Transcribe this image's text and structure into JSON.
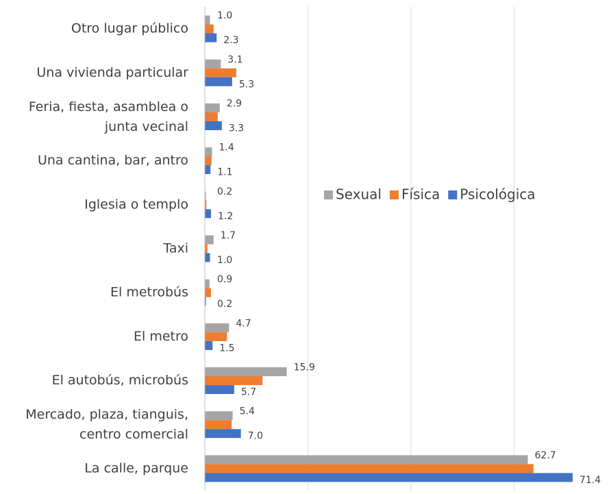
{
  "chart_data": {
    "type": "hbar",
    "categories": [
      "Otro lugar público",
      "Una vivienda particular",
      "Feria, fiesta, asamblea o junta vecinal",
      "Una cantina, bar, antro",
      "Iglesia o templo",
      "Taxi",
      "El metrobús",
      "El metro",
      "El autobús, microbús",
      "Mercado, plaza, tianguis, centro comercial",
      "La calle, parque"
    ],
    "series": [
      {
        "name": "Sexual",
        "color": "#a5a5a5",
        "values": [
          1.0,
          3.1,
          2.9,
          1.4,
          0.2,
          1.7,
          0.9,
          4.7,
          15.9,
          5.4,
          62.7
        ],
        "show_labels": true
      },
      {
        "name": "Física",
        "color": "#ed7d31",
        "values": [
          1.7,
          6.1,
          2.5,
          1.3,
          0.3,
          0.5,
          1.2,
          4.3,
          11.2,
          5.2,
          63.8
        ],
        "show_labels": false
      },
      {
        "name": "Psicológica",
        "color": "#4472c4",
        "values": [
          2.3,
          5.3,
          3.3,
          1.1,
          1.2,
          1.0,
          0.2,
          1.5,
          5.7,
          7.0,
          71.4
        ],
        "show_labels": true
      }
    ],
    "value_labels": [
      [
        "1.0",
        "3.1",
        "2.9",
        "1.4",
        "0.2",
        "1.7",
        "0.9",
        "4.7",
        "15.9",
        "5.4",
        "62.7"
      ],
      null,
      [
        "2.3",
        "5.3",
        "3.3",
        "1.1",
        "1.2",
        "1.0",
        "0.2",
        "1.5",
        "5.7",
        "7.0",
        "71.4"
      ]
    ],
    "xlim": [
      0,
      78
    ],
    "xticks": [
      0,
      20,
      40,
      60
    ],
    "grid": true,
    "legend": "center"
  }
}
